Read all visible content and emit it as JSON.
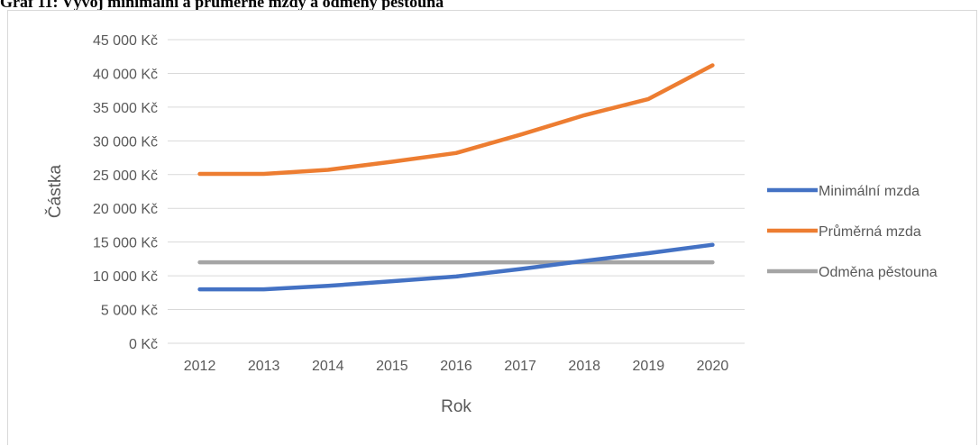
{
  "caption": "Graf 11: Vývoj minimální a průměrné mzdy a odměny pěstouna",
  "chart_data": {
    "type": "line",
    "title": "",
    "xlabel": "Rok",
    "ylabel": "Částka",
    "categories": [
      "2012",
      "2013",
      "2014",
      "2015",
      "2016",
      "2017",
      "2018",
      "2019",
      "2020"
    ],
    "ylim": [
      0,
      45000
    ],
    "yticks": [
      {
        "value": 0,
        "label": "0 Kč"
      },
      {
        "value": 5000,
        "label": "5 000 Kč"
      },
      {
        "value": 10000,
        "label": "10 000 Kč"
      },
      {
        "value": 15000,
        "label": "15 000 Kč"
      },
      {
        "value": 20000,
        "label": "20 000 Kč"
      },
      {
        "value": 25000,
        "label": "25 000 Kč"
      },
      {
        "value": 30000,
        "label": "30 000 Kč"
      },
      {
        "value": 35000,
        "label": "35 000 Kč"
      },
      {
        "value": 40000,
        "label": "40 000 Kč"
      },
      {
        "value": 45000,
        "label": "45 000 Kč"
      }
    ],
    "grid": true,
    "legend_position": "right",
    "series": [
      {
        "name": "Minimální mzda",
        "color": "#4472c4",
        "values": [
          8000,
          8000,
          8500,
          9200,
          9900,
          11000,
          12200,
          13350,
          14600
        ]
      },
      {
        "name": "Průměrná mzda",
        "color": "#ed7d31",
        "values": [
          25100,
          25100,
          25700,
          26900,
          28200,
          30900,
          33800,
          36200,
          41200
        ]
      },
      {
        "name": "Odměna pěstouna",
        "color": "#a5a5a5",
        "values": [
          12000,
          12000,
          12000,
          12000,
          12000,
          12000,
          12000,
          12000,
          12000
        ]
      }
    ]
  }
}
